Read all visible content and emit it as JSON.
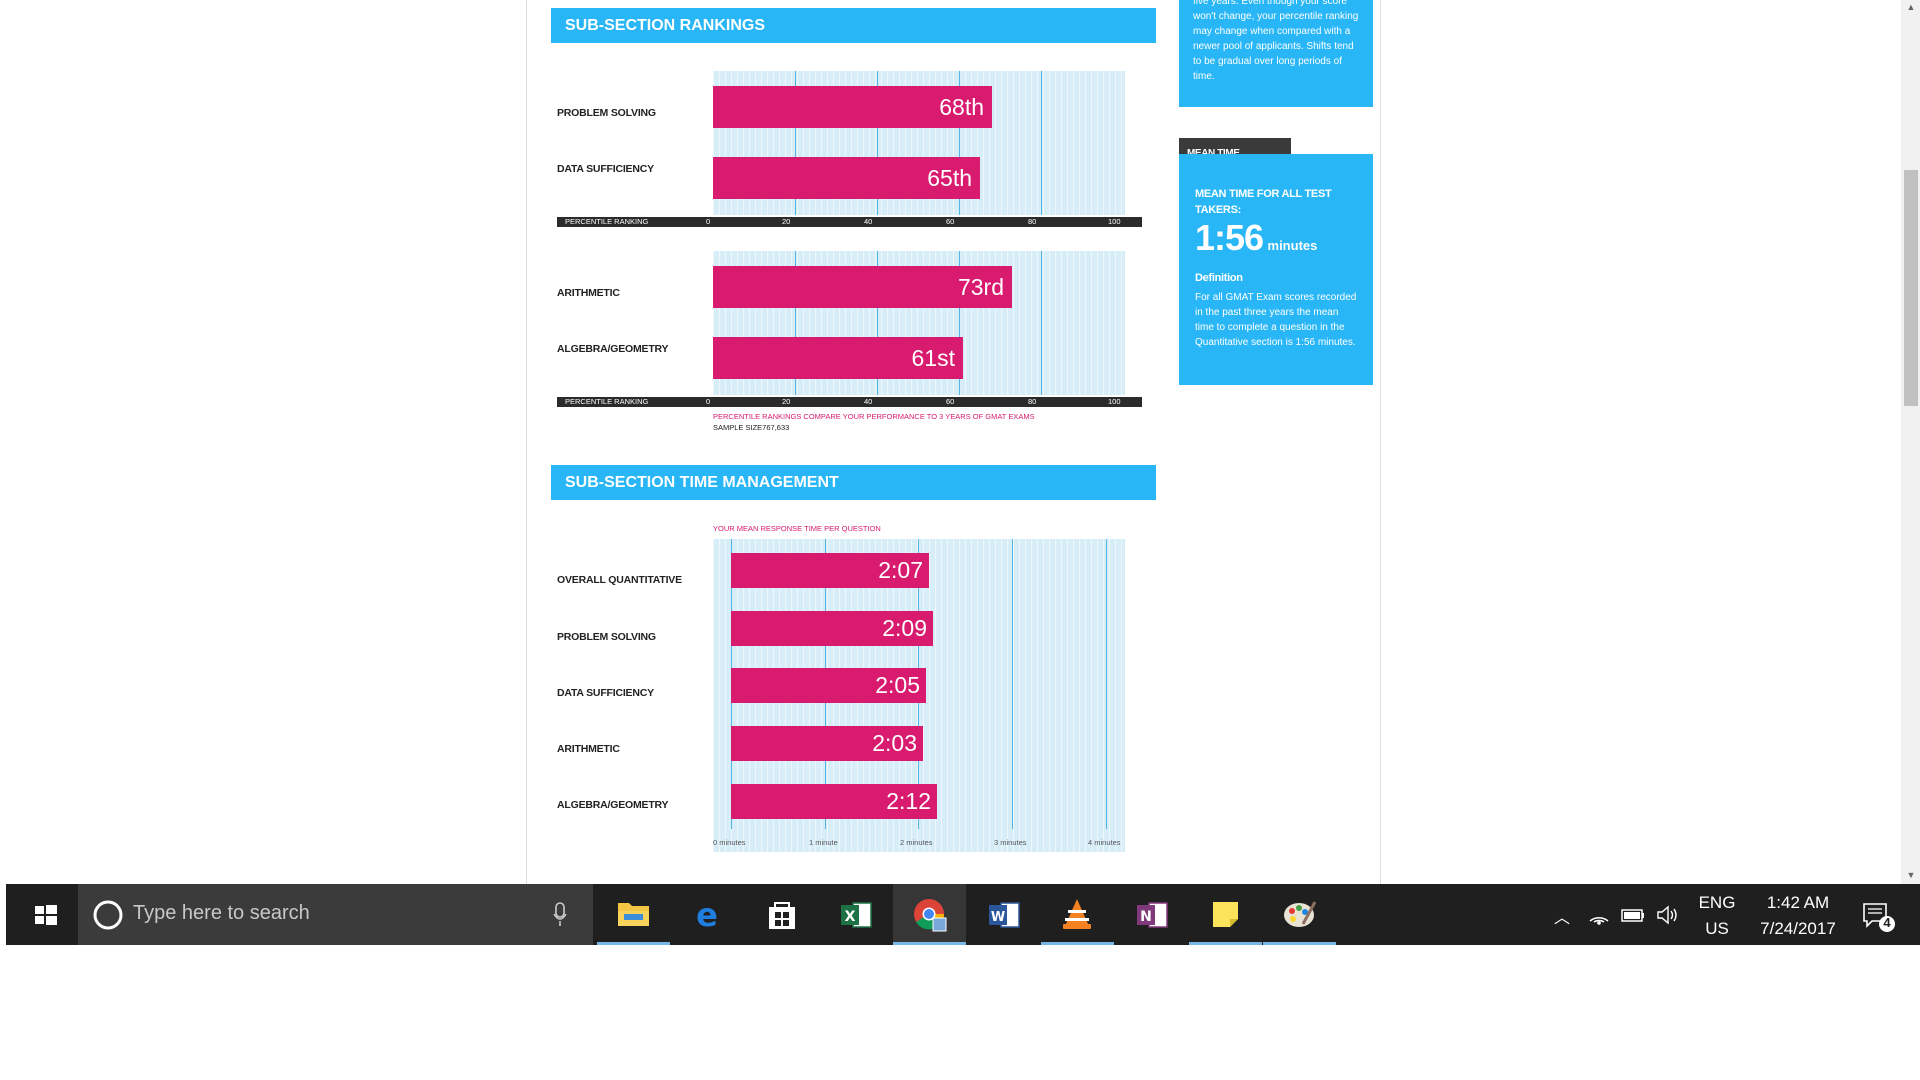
{
  "rankings": {
    "title": "SUB-SECTION RANKINGS",
    "group1": [
      {
        "label": "PROBLEM SOLVING",
        "value": 68,
        "value_label": "68th"
      },
      {
        "label": "DATA SUFFICIENCY",
        "value": 65,
        "value_label": "65th"
      }
    ],
    "group2": [
      {
        "label": "ARITHMETIC",
        "value": 73,
        "value_label": "73rd"
      },
      {
        "label": "ALGEBRA/GEOMETRY",
        "value": 61,
        "value_label": "61st"
      }
    ],
    "axis_label": "PERCENTILE RANKING",
    "ticks": [
      "0",
      "20",
      "40",
      "60",
      "80",
      "100"
    ],
    "note": "PERCENTILE RANKINGS COMPARE YOUR PERFORMANCE TO 3 YEARS OF GMAT EXAMS",
    "sample": "SAMPLE SIZE767,633"
  },
  "time_mgmt": {
    "title": "SUB-SECTION TIME MANAGEMENT",
    "caption": "YOUR MEAN RESPONSE TIME PER QUESTION",
    "rows": [
      {
        "label": "OVERALL QUANTITATIVE",
        "seconds": 127,
        "value_label": "2:07"
      },
      {
        "label": "PROBLEM SOLVING",
        "seconds": 129,
        "value_label": "2:09"
      },
      {
        "label": "DATA SUFFICIENCY",
        "seconds": 125,
        "value_label": "2:05"
      },
      {
        "label": "ARITHMETIC",
        "seconds": 123,
        "value_label": "2:03"
      },
      {
        "label": "ALGEBRA/GEOMETRY",
        "seconds": 132,
        "value_label": "2:12"
      }
    ],
    "ticks": [
      "0 minutes",
      "1 minute",
      "2 minutes",
      "3 minutes",
      "4 minutes"
    ]
  },
  "chart_data": [
    {
      "type": "bar",
      "title": "SUB-SECTION RANKINGS",
      "xlabel": "PERCENTILE RANKING",
      "xlim": [
        0,
        100
      ],
      "categories": [
        "PROBLEM SOLVING",
        "DATA SUFFICIENCY"
      ],
      "values": [
        68,
        65
      ]
    },
    {
      "type": "bar",
      "title": "SUB-SECTION RANKINGS",
      "xlabel": "PERCENTILE RANKING",
      "xlim": [
        0,
        100
      ],
      "categories": [
        "ARITHMETIC",
        "ALGEBRA/GEOMETRY"
      ],
      "values": [
        73,
        61
      ]
    },
    {
      "type": "bar",
      "title": "SUB-SECTION TIME MANAGEMENT",
      "subtitle": "YOUR MEAN RESPONSE TIME PER QUESTION",
      "xlim": [
        0,
        4
      ],
      "x_unit": "minutes",
      "categories": [
        "OVERALL QUANTITATIVE",
        "PROBLEM SOLVING",
        "DATA SUFFICIENCY",
        "ARITHMETIC",
        "ALGEBRA/GEOMETRY"
      ],
      "values": [
        2.117,
        2.15,
        2.083,
        2.05,
        2.2
      ],
      "value_labels": [
        "2:07",
        "2:09",
        "2:05",
        "2:03",
        "2:12"
      ]
    }
  ],
  "sidebar": {
    "top_card_text": "five years. Even though your score won't change, your percentile ranking may change when compared with a newer pool of applicants. Shifts tend to be gradual over long periods of time.",
    "mean_time_tab": "MEAN TIME",
    "mean_time_heading": "MEAN TIME FOR ALL TEST TAKERS:",
    "mean_time_value": "1:56",
    "mean_time_unit": "minutes",
    "definition_title": "Definition",
    "definition_text": "For all GMAT Exam scores recorded in the past three years the mean time to complete a question in the Quantitative section is 1:56 minutes."
  },
  "taskbar": {
    "search_placeholder": "Type here to search",
    "apps": [
      "folder-icon",
      "edge-icon",
      "store-icon",
      "excel-icon",
      "chrome-icon",
      "word-icon",
      "vlc-icon",
      "onenote-icon",
      "sticky-notes-icon",
      "paint-icon"
    ],
    "lang": "ENG",
    "region": "US",
    "time": "1:42 AM",
    "date": "7/24/2017",
    "notification_count": "4"
  },
  "colors": {
    "accent_blue": "#29b6f6",
    "bar_pink": "#d81b6e",
    "taskbar": "#1f1f1f"
  }
}
